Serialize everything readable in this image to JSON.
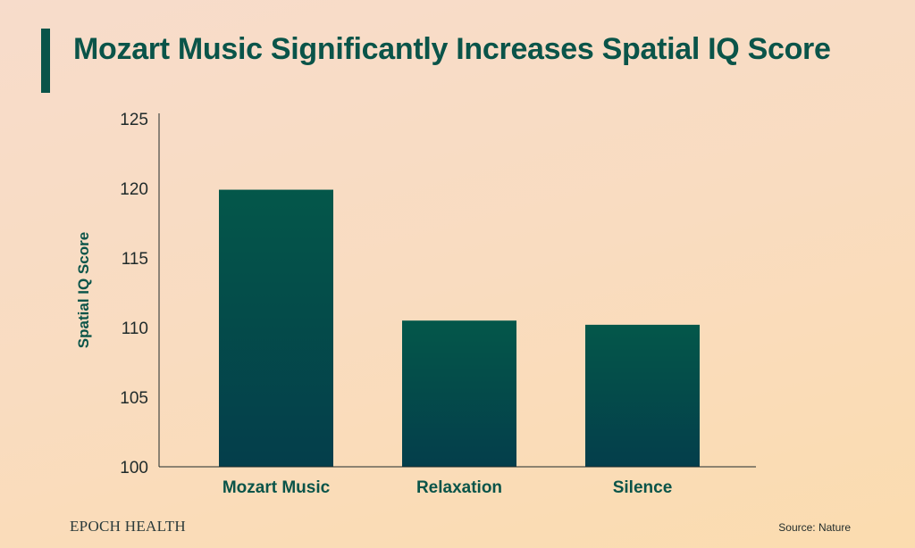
{
  "title": "Mozart Music Significantly Increases Spatial IQ Score",
  "brand": "EPOCH HEALTH",
  "source": "Source: Nature",
  "colors": {
    "title": "#0a5449",
    "bar_top": "#04574a",
    "bar_bottom": "#043e4b",
    "axis": "#1f2a2a"
  },
  "chart_data": {
    "type": "bar",
    "title": "Mozart Music Significantly Increases Spatial IQ Score",
    "xlabel": "",
    "ylabel": "Spatial IQ Score",
    "categories": [
      "Mozart Music",
      "Relaxation",
      "Silence"
    ],
    "values": [
      119.9,
      110.5,
      110.2
    ],
    "ylim": [
      100,
      125
    ],
    "yticks": [
      100,
      105,
      110,
      115,
      120,
      125
    ],
    "grid": false,
    "legend": "none"
  }
}
